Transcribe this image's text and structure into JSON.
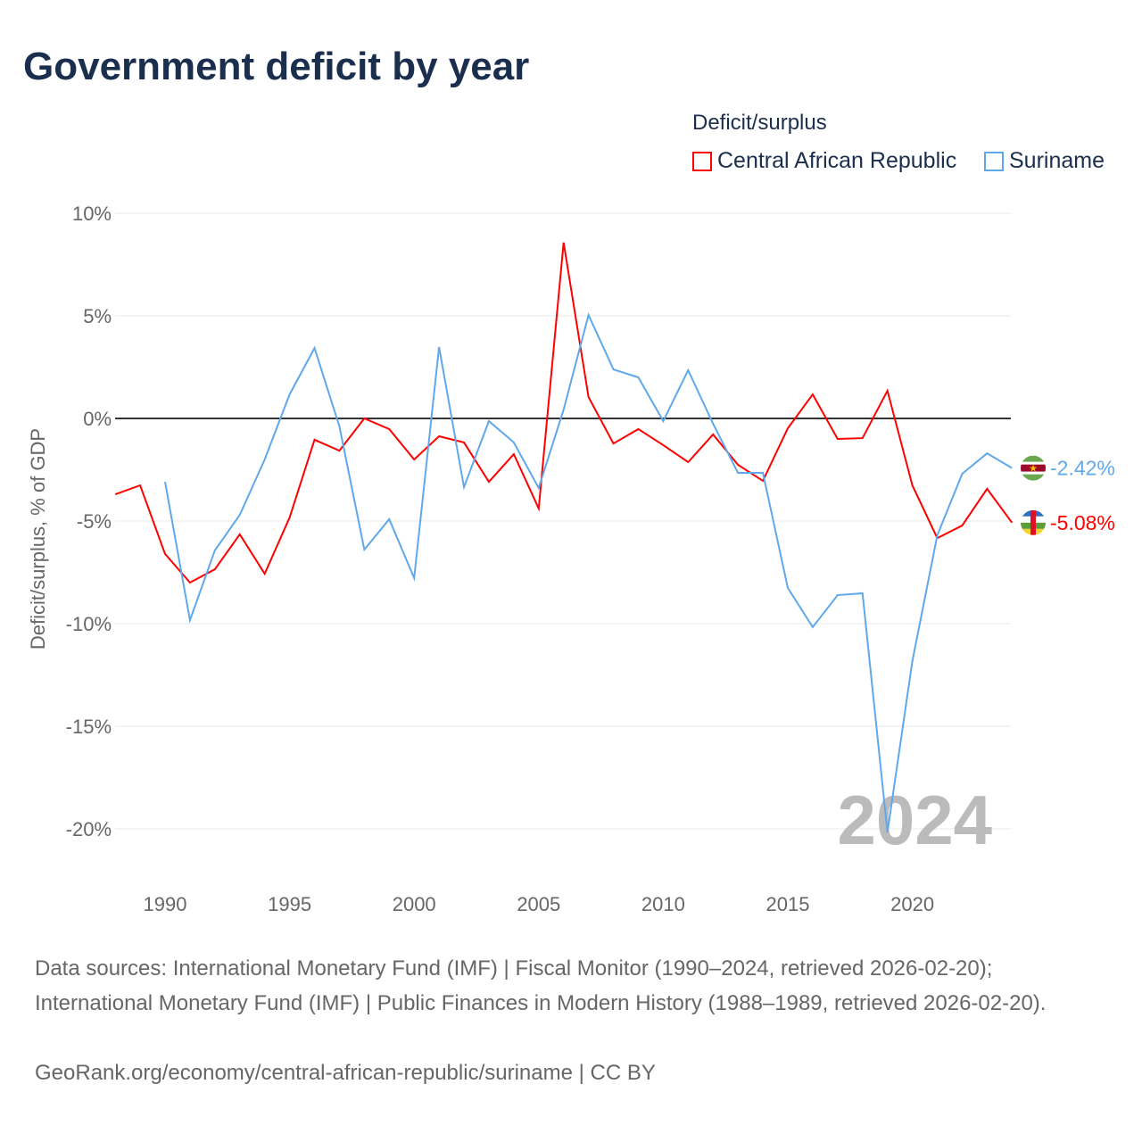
{
  "title": "Government deficit by year",
  "legend": {
    "title": "Deficit/surplus",
    "items": [
      "Central African Republic",
      "Suriname"
    ]
  },
  "sources": [
    "Data sources: International Monetary Fund (IMF) | Fiscal Monitor (1990–2024, retrieved 2026-02-20); International Monetary Fund (IMF) | Public Finances in Modern History (1988–1989, retrieved 2026-02-20).",
    "GeoRank.org/economy/central-african-republic/suriname | CC BY"
  ],
  "chart_data": {
    "type": "line",
    "title": "Government deficit by year",
    "ylabel": "Deficit/surplus, % of GDP",
    "xlabel": "",
    "ylim": [
      -20,
      10
    ],
    "xlim": [
      1988,
      2024
    ],
    "yticks": [
      10,
      5,
      0,
      -5,
      -10,
      -15,
      -20
    ],
    "ytick_labels": [
      "10%",
      "5%",
      "0%",
      "-5%",
      "-10%",
      "-15%",
      "-20%"
    ],
    "xticks": [
      1990,
      1995,
      2000,
      2005,
      2010,
      2015,
      2020
    ],
    "year_label": "2024",
    "grid": true,
    "legend_position": "top-right",
    "series": [
      {
        "name": "Central African Republic",
        "color": "#ff0000",
        "end_label": "-5.08%",
        "x": [
          1988,
          1989,
          1990,
          1991,
          1992,
          1993,
          1994,
          1995,
          1996,
          1997,
          1998,
          1999,
          2000,
          2001,
          2002,
          2003,
          2004,
          2005,
          2006,
          2007,
          2008,
          2009,
          2010,
          2011,
          2012,
          2013,
          2014,
          2015,
          2016,
          2017,
          2018,
          2019,
          2020,
          2021,
          2022,
          2023,
          2024
        ],
        "values": [
          -3.7,
          -3.26,
          -6.6,
          -8.0,
          -7.35,
          -5.65,
          -7.57,
          -4.83,
          -1.04,
          -1.57,
          0.0,
          -0.52,
          -2.0,
          -0.87,
          -1.17,
          -3.09,
          -1.74,
          -4.39,
          8.57,
          1.04,
          -1.22,
          -0.52,
          -1.3,
          -2.13,
          -0.78,
          -2.26,
          -3.04,
          -0.48,
          1.17,
          -1.0,
          -0.96,
          1.35,
          -3.26,
          -5.83,
          -5.22,
          -3.43,
          -5.08
        ]
      },
      {
        "name": "Suriname",
        "color": "#5fa8ec",
        "end_label": "-2.42%",
        "x": [
          1990,
          1991,
          1992,
          1993,
          1994,
          1995,
          1996,
          1997,
          1998,
          1999,
          2000,
          2001,
          2002,
          2003,
          2004,
          2005,
          2006,
          2007,
          2008,
          2009,
          2010,
          2011,
          2012,
          2013,
          2014,
          2015,
          2016,
          2017,
          2018,
          2019,
          2020,
          2021,
          2022,
          2023,
          2024
        ],
        "values": [
          -3.09,
          -9.83,
          -6.43,
          -4.7,
          -2.0,
          1.17,
          3.43,
          -0.39,
          -6.39,
          -4.91,
          -7.78,
          3.48,
          -3.35,
          -0.13,
          -1.17,
          -3.39,
          0.43,
          5.04,
          2.39,
          2.0,
          -0.13,
          2.35,
          -0.26,
          -2.65,
          -2.65,
          -8.26,
          -10.17,
          -8.61,
          -8.52,
          -20.17,
          -11.83,
          -5.7,
          -2.7,
          -1.7,
          -2.42
        ]
      }
    ]
  }
}
